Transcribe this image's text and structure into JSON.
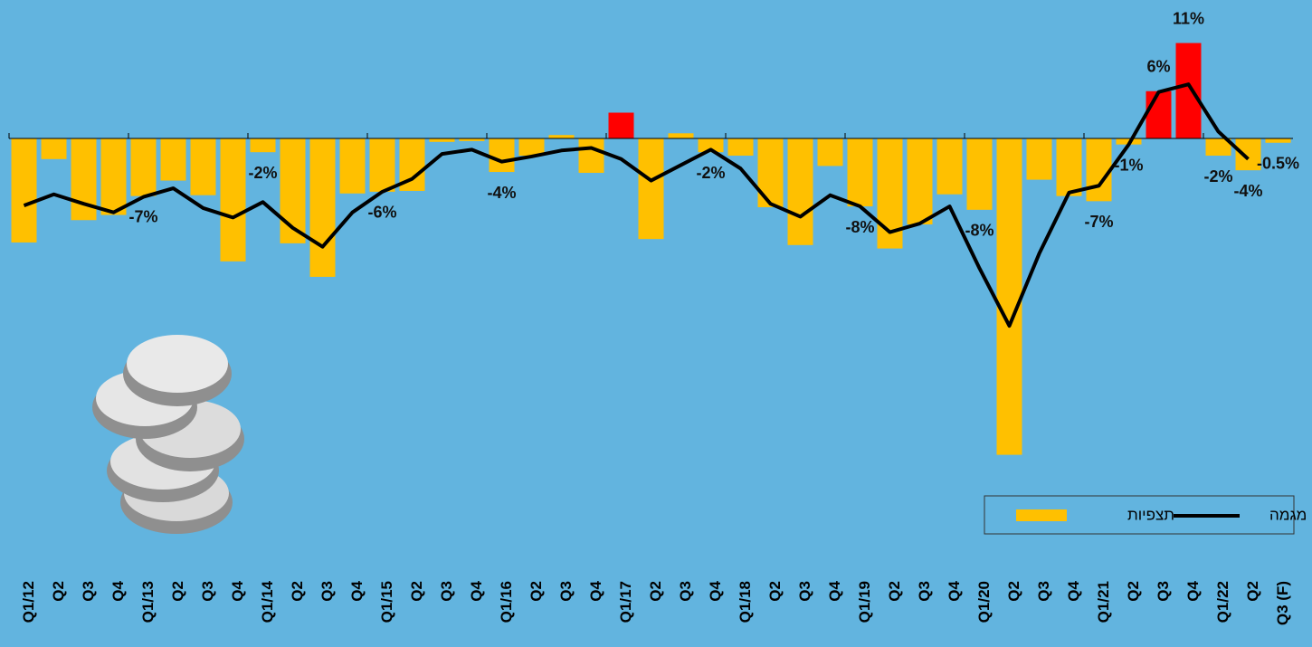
{
  "chart_data": {
    "type": "bar_line",
    "categories": [
      "Q1/12",
      "Q2",
      "Q3",
      "Q4",
      "Q1/13",
      "Q2",
      "Q3",
      "Q4",
      "Q1/14",
      "Q2",
      "Q3",
      "Q4",
      "Q1/15",
      "Q2",
      "Q3",
      "Q4",
      "Q1/16",
      "Q2",
      "Q3",
      "Q4",
      "Q1/17",
      "Q2",
      "Q3",
      "Q4",
      "Q1/18",
      "Q2",
      "Q3",
      "Q4",
      "Q1/19",
      "Q2",
      "Q3",
      "Q4",
      "Q1/20",
      "Q2",
      "Q3",
      "Q4",
      "Q1/21",
      "Q2",
      "Q3",
      "Q4",
      "Q1/22",
      "Q2",
      "Q3 (F)"
    ],
    "series": [
      {
        "name": "תצפיות",
        "kind": "bar",
        "color": "#ffc000",
        "colors": [
          "#ffc000",
          "#ffc000",
          "#ffc000",
          "#ffc000",
          "#ffc000",
          "#ffc000",
          "#ffc000",
          "#ffc000",
          "#ffc000",
          "#ffc000",
          "#ffc000",
          "#ffc000",
          "#ffc000",
          "#ffc000",
          "#ffc000",
          "#ffc000",
          "#ffc000",
          "#ffc000",
          "#ffc000",
          "#ffc000",
          "#ff0000",
          "#ffc000",
          "#ffc000",
          "#ffc000",
          "#ffc000",
          "#ffc000",
          "#ffc000",
          "#ffc000",
          "#ffc000",
          "#ffc000",
          "#ffc000",
          "#ffc000",
          "#ffc000",
          "#ffc000",
          "#ffc000",
          "#ffc000",
          "#ffc000",
          "#ffc000",
          "#ff0000",
          "#ff0000",
          "#ffc000",
          "#ffc000",
          "#ffc000"
        ],
        "values": [
          -12.1,
          -2.4,
          -9.5,
          -8.9,
          -6.7,
          -4.9,
          -6.6,
          -14.3,
          -1.6,
          -12.2,
          -16.1,
          -6.4,
          -6.2,
          -6.1,
          -0.4,
          -0.3,
          -3.9,
          -2.0,
          0.4,
          -4.0,
          3.0,
          -11.7,
          0.6,
          -1.6,
          -2.0,
          -8.0,
          -12.4,
          -3.2,
          -7.9,
          -12.8,
          -10.0,
          -6.5,
          -8.3,
          -36.8,
          -4.8,
          -6.7,
          -7.3,
          -0.7,
          5.5,
          11.1,
          -2.0,
          -3.7,
          -0.5
        ],
        "value_labels": [
          null,
          null,
          null,
          null,
          "-7%",
          null,
          null,
          null,
          "-2%",
          null,
          null,
          null,
          "-6%",
          null,
          null,
          null,
          "-4%",
          null,
          null,
          null,
          null,
          null,
          null,
          "-2%",
          null,
          null,
          null,
          null,
          "-8%",
          null,
          null,
          null,
          "-8%",
          null,
          null,
          null,
          "-7%",
          "-1%",
          "6%",
          "11%",
          "-2%",
          "-4%",
          "-0.5%"
        ]
      },
      {
        "name": "מגמה",
        "kind": "line",
        "color": "#000000",
        "values": [
          -7.8,
          -6.5,
          -7.6,
          -8.6,
          -6.8,
          -5.8,
          -8.1,
          -9.2,
          -7.4,
          -10.4,
          -12.6,
          -8.6,
          -6.2,
          -4.7,
          -1.8,
          -1.3,
          -2.7,
          -2.1,
          -1.4,
          -1.1,
          -2.4,
          -4.9,
          -3.1,
          -1.3,
          -3.5,
          -7.6,
          -9.1,
          -6.6,
          -7.9,
          -10.9,
          -9.9,
          -7.9,
          -15.1,
          -21.8,
          -13.4,
          -6.3,
          -5.5,
          -0.7,
          5.4,
          6.3,
          0.8,
          -2.4,
          null
        ]
      }
    ],
    "ylim": [
      -40,
      14
    ],
    "legend": "bottom-right"
  }
}
